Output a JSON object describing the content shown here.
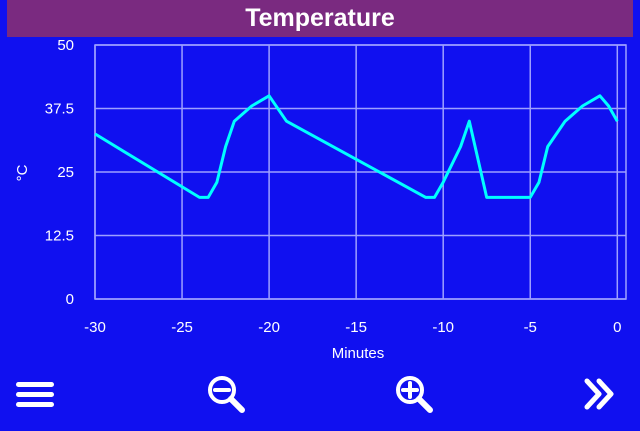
{
  "window": {
    "title": "Temperature"
  },
  "colors": {
    "background": "#1010f0",
    "titlebar": "#7a2a80",
    "line": "#00ffff",
    "grid": "#9ea0ff"
  },
  "chart_data": {
    "type": "line",
    "title": "Temperature",
    "xlabel": "Minutes",
    "ylabel": "°C",
    "xlim": [
      -30,
      0.5
    ],
    "ylim": [
      0,
      50
    ],
    "x_ticks": [
      -30,
      -25,
      -20,
      -15,
      -10,
      -5,
      0
    ],
    "y_ticks": [
      0,
      12.5,
      25,
      37.5,
      50
    ],
    "x_tick_labels": [
      "-30",
      "-25",
      "-20",
      "-15",
      "-10",
      "-5",
      "0"
    ],
    "y_tick_labels": [
      "0",
      "12.5",
      "25",
      "37.5",
      "50"
    ],
    "grid": true,
    "series": [
      {
        "x": [
          -30,
          -24,
          -23.5,
          -23,
          -22.5,
          -22,
          -21,
          -20,
          -19,
          -11,
          -10.5,
          -10,
          -9,
          -8.5,
          -7.5,
          -5,
          -4.5,
          -4,
          -3,
          -2,
          -1,
          -0.5,
          0
        ],
        "y": [
          32.5,
          20,
          20,
          23,
          30,
          35,
          38,
          40,
          35,
          20,
          20,
          23,
          30,
          35,
          20,
          20,
          23,
          30,
          35,
          38,
          40,
          38,
          35
        ]
      }
    ]
  },
  "toolbar": {
    "menu_icon": "hamburger-menu-icon",
    "zoom_out_icon": "zoom-out-icon",
    "zoom_in_icon": "zoom-in-icon",
    "next_icon": "double-chevron-right-icon"
  }
}
